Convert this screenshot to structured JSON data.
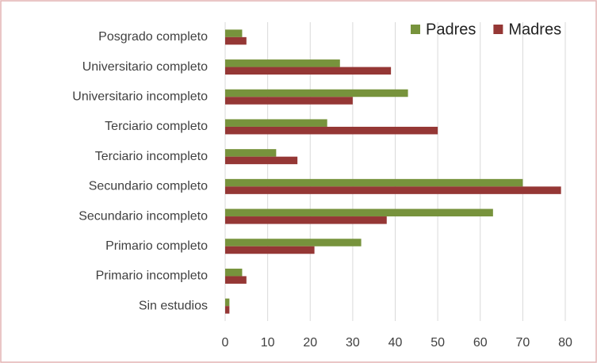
{
  "chart_data": {
    "type": "hbar",
    "categories": [
      "Posgrado completo",
      "Universitario completo",
      "Universitario incompleto",
      "Terciario completo",
      "Terciario incompleto",
      "Secundario completo",
      "Secundario incompleto",
      "Primario completo",
      "Primario incompleto",
      "Sin estudios"
    ],
    "series": [
      {
        "name": "Padres",
        "color": "#77933c",
        "values": [
          4,
          27,
          43,
          24,
          12,
          70,
          63,
          32,
          4,
          1
        ]
      },
      {
        "name": "Madres",
        "color": "#953735",
        "values": [
          5,
          39,
          30,
          50,
          17,
          79,
          38,
          21,
          5,
          1
        ]
      }
    ],
    "xlim": [
      0,
      80
    ],
    "xticks": [
      0,
      10,
      20,
      30,
      40,
      50,
      60,
      70,
      80
    ],
    "grid": true,
    "legend": "top-right"
  }
}
